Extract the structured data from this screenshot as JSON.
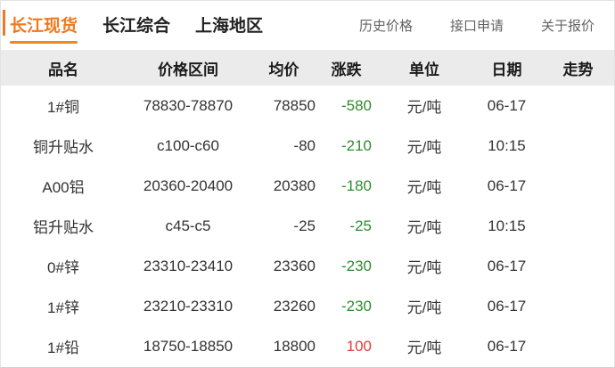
{
  "nav": {
    "tabs": [
      {
        "label": "长江现货",
        "active": true
      },
      {
        "label": "长江综合",
        "active": false
      },
      {
        "label": "上海地区",
        "active": false
      }
    ],
    "links": [
      {
        "label": "历史价格"
      },
      {
        "label": "接口申请"
      },
      {
        "label": "关于报价"
      }
    ]
  },
  "colors": {
    "accent_orange": "#f0781e",
    "change_down_green": "#2e8b2e",
    "change_up_red": "#e63a3a",
    "header_bg": "#ebebeb"
  },
  "table": {
    "columns": [
      "品名",
      "价格区间",
      "均价",
      "涨跌",
      "单位",
      "日期",
      "走势"
    ],
    "rows": [
      {
        "name": "1#铜",
        "range": "78830-78870",
        "avg": "78850",
        "change": "-580",
        "change_color": "#2e8b2e",
        "unit": "元/吨",
        "date": "06-17",
        "trend": ""
      },
      {
        "name": "铜升贴水",
        "range": "c100-c60",
        "avg": "-80",
        "change": "-210",
        "change_color": "#2e8b2e",
        "unit": "元/吨",
        "date": "10:15",
        "trend": ""
      },
      {
        "name": "A00铝",
        "range": "20360-20400",
        "avg": "20380",
        "change": "-180",
        "change_color": "#2e8b2e",
        "unit": "元/吨",
        "date": "06-17",
        "trend": ""
      },
      {
        "name": "铝升贴水",
        "range": "c45-c5",
        "avg": "-25",
        "change": "-25",
        "change_color": "#2e8b2e",
        "unit": "元/吨",
        "date": "10:15",
        "trend": ""
      },
      {
        "name": "0#锌",
        "range": "23310-23410",
        "avg": "23360",
        "change": "-230",
        "change_color": "#2e8b2e",
        "unit": "元/吨",
        "date": "06-17",
        "trend": ""
      },
      {
        "name": "1#锌",
        "range": "23210-23310",
        "avg": "23260",
        "change": "-230",
        "change_color": "#2e8b2e",
        "unit": "元/吨",
        "date": "06-17",
        "trend": ""
      },
      {
        "name": "1#铅",
        "range": "18750-18850",
        "avg": "18800",
        "change": "100",
        "change_color": "#e63a3a",
        "unit": "元/吨",
        "date": "06-17",
        "trend": ""
      }
    ]
  }
}
